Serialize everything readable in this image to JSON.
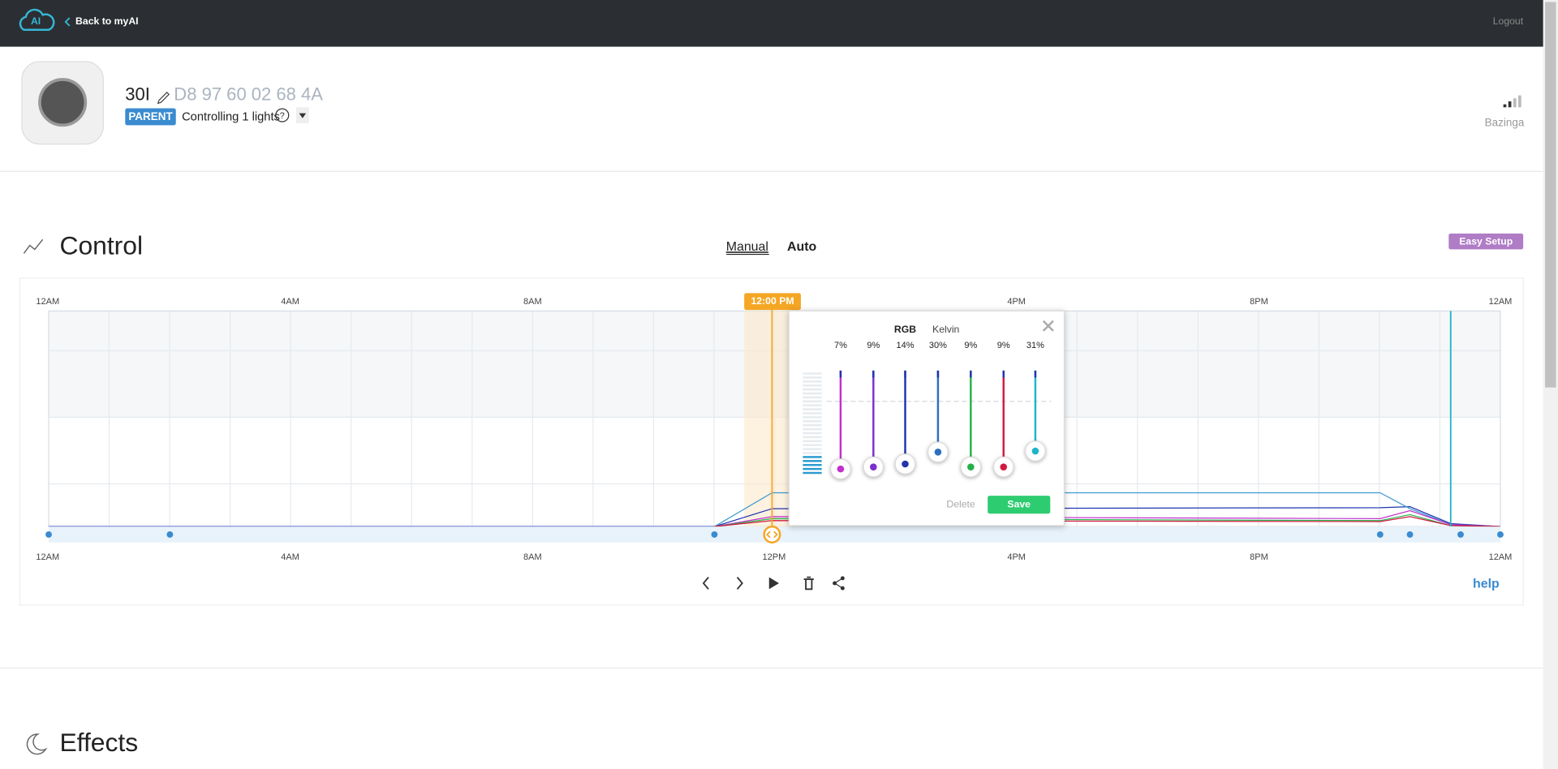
{
  "header": {
    "logo": "AI",
    "back": "Back to myAI",
    "logout": "Logout"
  },
  "device": {
    "name": "30I",
    "mac": "D8 97 60 02 68 4A",
    "badge": "PARENT",
    "controlling": "Controlling 1 lights",
    "help_icon": "?",
    "signal_name": "Bazinga"
  },
  "control": {
    "title": "Control",
    "tabs": [
      "Manual",
      "Auto"
    ],
    "easy_setup": "Easy Setup"
  },
  "schedule": {
    "top_axis": [
      "12AM",
      "4AM",
      "8AM",
      "4PM",
      "8PM",
      "12AM"
    ],
    "bottom_axis": [
      "12AM",
      "4AM",
      "8AM",
      "12PM",
      "4PM",
      "8PM",
      "12AM"
    ],
    "marker": "12:00 PM",
    "help": "help"
  },
  "popup": {
    "tabs": [
      "RGB",
      "Kelvin"
    ],
    "channels": [
      "7%",
      "9%",
      "14%",
      "30%",
      "9%",
      "9%",
      "31%"
    ],
    "delete": "Delete",
    "save": "Save"
  },
  "effects": {
    "title": "Effects"
  }
}
